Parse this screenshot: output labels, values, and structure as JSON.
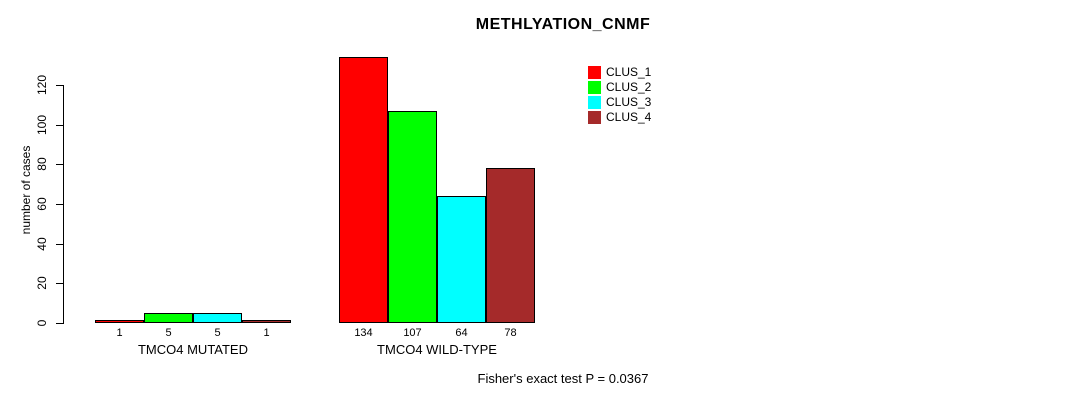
{
  "chart_data": {
    "type": "bar",
    "title": "METHLYATION_CNMF",
    "xlabel": "",
    "ylabel": "number of cases",
    "ylim": [
      0,
      120
    ],
    "yticks": [
      0,
      20,
      40,
      60,
      80,
      100,
      120
    ],
    "grid": false,
    "categories": [
      "TMCO4 MUTATED",
      "TMCO4 WILD-TYPE"
    ],
    "series": [
      {
        "name": "CLUS_1",
        "color": "#ff0000",
        "values": [
          1,
          134
        ]
      },
      {
        "name": "CLUS_2",
        "color": "#00ff00",
        "values": [
          5,
          107
        ]
      },
      {
        "name": "CLUS_3",
        "color": "#00ffff",
        "values": [
          5,
          64
        ]
      },
      {
        "name": "CLUS_4",
        "color": "#a52a2a",
        "values": [
          1,
          78
        ]
      }
    ],
    "bar_value_labels": [
      [
        "1",
        "5",
        "5",
        "1"
      ],
      [
        "134",
        "107",
        "64",
        "78"
      ]
    ],
    "legend_position": "inside-top-right",
    "legend_entries": [
      "CLUS_1",
      "CLUS_2",
      "CLUS_3",
      "CLUS_4"
    ],
    "annotation": "Fisher's exact test P = 0.0367"
  }
}
